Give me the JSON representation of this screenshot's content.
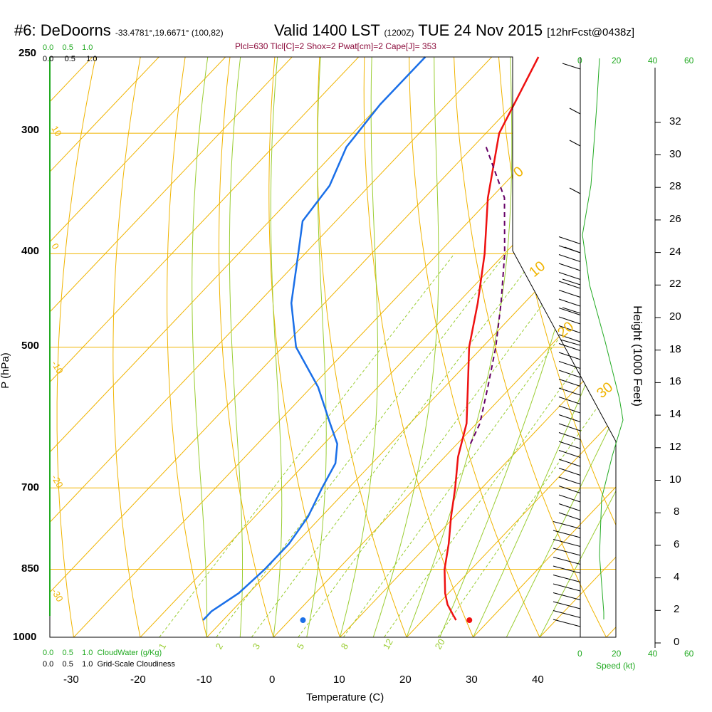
{
  "header": {
    "station": "#6: DeDoorns",
    "coords": "-33.4781°,19.6671° (100,82)",
    "valid": "Valid 1400 LST",
    "utc": "(1200Z)",
    "date": "TUE 24 Nov 2015",
    "forecast": "[12hrFcst@0438z]",
    "indices": "Plcl=630 Tlcl[C]=2 Shox=2 Pwat[cm]=2 Cape[J]= 353"
  },
  "chart_data": {
    "type": "skew-t",
    "xlabel": "Temperature (C)",
    "ylabel": "P (hPa)",
    "right_ylabel": "Height (1000 Feet)",
    "pressure_ticks": [
      "250",
      "300",
      "400",
      "500",
      "700",
      "850",
      "1000"
    ],
    "temp_ticks": [
      "-30",
      "-20",
      "-10",
      "0",
      "10",
      "20",
      "30",
      "40"
    ],
    "height_ticks": [
      "0",
      "2",
      "4",
      "6",
      "8",
      "10",
      "12",
      "14",
      "16",
      "18",
      "20",
      "22",
      "24",
      "26",
      "28",
      "30",
      "32"
    ],
    "speed_ticks_top": [
      "0",
      "20",
      "40",
      "60"
    ],
    "speed_ticks_bottom": [
      "0",
      "20",
      "40",
      "60"
    ],
    "speed_label": "Speed (kt)",
    "cloud_scale_top_green": [
      "0.0",
      "0.5",
      "1.0"
    ],
    "cloud_scale_top_black": [
      "0.0",
      "0.5",
      "1.0"
    ],
    "cloud_scale_bottom_green": [
      "0.0",
      "0.5",
      "1.0"
    ],
    "cloud_scale_bottom_black": [
      "0.0",
      "0.5",
      "1.0"
    ],
    "cloudwater_label": "CloudWater (g/Kg)",
    "cloudiness_label": "Grid-Scale Cloudiness",
    "mixing_ratio_labels": [
      "1",
      "2",
      "3",
      "5",
      "8",
      "12",
      "20"
    ],
    "isotherm_labels": [
      "10",
      "0",
      "-10",
      "-20",
      "-30"
    ],
    "adiabat_labels": [
      "0",
      "10",
      "20",
      "30"
    ],
    "temperature_profile": [
      {
        "p": 250,
        "t": -43
      },
      {
        "p": 300,
        "t": -38
      },
      {
        "p": 350,
        "t": -30.5
      },
      {
        "p": 400,
        "t": -23
      },
      {
        "p": 450,
        "t": -17
      },
      {
        "p": 500,
        "t": -12
      },
      {
        "p": 550,
        "t": -6.5
      },
      {
        "p": 600,
        "t": -1.5
      },
      {
        "p": 650,
        "t": 2
      },
      {
        "p": 700,
        "t": 6
      },
      {
        "p": 750,
        "t": 9.5
      },
      {
        "p": 800,
        "t": 13
      },
      {
        "p": 850,
        "t": 16
      },
      {
        "p": 900,
        "t": 19.5
      },
      {
        "p": 925,
        "t": 21.5
      },
      {
        "p": 950,
        "t": 24
      },
      {
        "p": 960,
        "t": 25
      }
    ],
    "dewpoint_profile": [
      {
        "p": 250,
        "t": -60
      },
      {
        "p": 280,
        "t": -60
      },
      {
        "p": 310,
        "t": -59
      },
      {
        "p": 340,
        "t": -56
      },
      {
        "p": 370,
        "t": -55
      },
      {
        "p": 400,
        "t": -51
      },
      {
        "p": 450,
        "t": -45
      },
      {
        "p": 500,
        "t": -38
      },
      {
        "p": 550,
        "t": -29
      },
      {
        "p": 600,
        "t": -22
      },
      {
        "p": 630,
        "t": -18
      },
      {
        "p": 660,
        "t": -15.5
      },
      {
        "p": 700,
        "t": -14
      },
      {
        "p": 750,
        "t": -12
      },
      {
        "p": 800,
        "t": -11
      },
      {
        "p": 850,
        "t": -11
      },
      {
        "p": 900,
        "t": -11.5
      },
      {
        "p": 940,
        "t": -13
      },
      {
        "p": 960,
        "t": -13
      }
    ],
    "parcel_profile": [
      {
        "p": 310,
        "t": -38
      },
      {
        "p": 350,
        "t": -28
      },
      {
        "p": 400,
        "t": -20
      },
      {
        "p": 450,
        "t": -13.5
      },
      {
        "p": 500,
        "t": -8
      },
      {
        "p": 550,
        "t": -3.5
      },
      {
        "p": 600,
        "t": 0.5
      },
      {
        "p": 630,
        "t": 2
      }
    ],
    "surface_temp_dot": {
      "p": 960,
      "t": 27
    },
    "surface_dew_dot": {
      "p": 960,
      "t": 2
    }
  },
  "colors": {
    "temperature": "#ee1111",
    "dewpoint": "#1a6fe8",
    "parcel": "#660066",
    "isobar": "#f0b400",
    "isotherm": "#f0b400",
    "adiabat": "#9acd32",
    "mixing": "#9acd32",
    "green_text": "#22aa22",
    "subtitle": "#8b0a3a"
  }
}
